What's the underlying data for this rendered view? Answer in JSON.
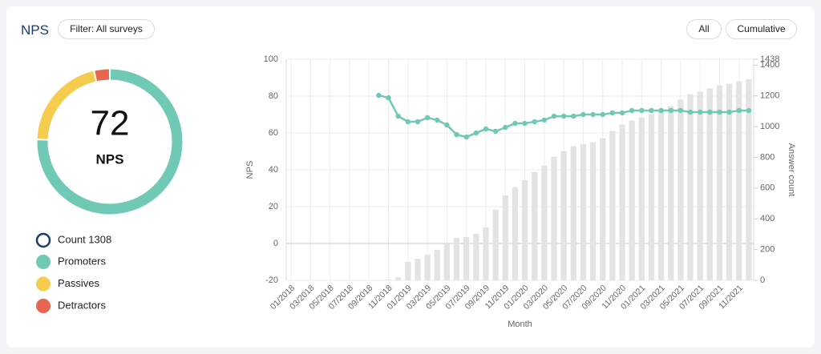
{
  "header": {
    "title": "NPS",
    "filter": "Filter: All surveys",
    "buttons": [
      "All",
      "Cumulative"
    ]
  },
  "chart_data": [
    {
      "type": "donut",
      "center_value": 72,
      "center_label": "NPS",
      "count_label": "Count 1308",
      "categories": [
        "Promoters",
        "Passives",
        "Detractors"
      ],
      "values": [
        75.5,
        21,
        3.5
      ],
      "colors": [
        "#6fc9b5",
        "#f6cc4e",
        "#e8664f"
      ]
    },
    {
      "type": "combo",
      "xlabel": "Month",
      "ylabel": "NPS",
      "y2label": "Answer count",
      "grid": true,
      "categories": [
        "01/2018",
        null,
        "03/2018",
        null,
        "05/2018",
        null,
        "07/2018",
        null,
        "09/2018",
        null,
        "11/2018",
        null,
        "01/2019",
        null,
        "03/2019",
        null,
        "05/2019",
        null,
        "07/2019",
        null,
        "09/2019",
        null,
        "11/2019",
        null,
        "01/2020",
        null,
        "03/2020",
        null,
        "05/2020",
        null,
        "07/2020",
        null,
        "09/2020",
        null,
        "11/2020",
        null,
        "01/2021",
        null,
        "03/2021",
        null,
        "05/2021",
        null,
        "07/2021",
        null,
        "09/2021",
        null,
        "11/2021",
        null
      ],
      "ylim": [
        -20,
        100
      ],
      "yticks": [
        -20,
        0,
        20,
        40,
        60,
        80,
        100
      ],
      "y2lim": [
        0,
        1438
      ],
      "y2ticks": [
        0,
        200,
        400,
        600,
        800,
        1000,
        1200,
        1400,
        1438
      ],
      "series": [
        {
          "type": "bar",
          "axis": "y2",
          "color": "#e3e3e3",
          "values": [
            0,
            0,
            0,
            0,
            0,
            0,
            0,
            0,
            0,
            0,
            5,
            20,
            120,
            140,
            167,
            198,
            245,
            277,
            282,
            303,
            345,
            460,
            553,
            606,
            653,
            705,
            747,
            804,
            840,
            872,
            887,
            898,
            924,
            971,
            1013,
            1039,
            1060,
            1081,
            1107,
            1133,
            1175,
            1211,
            1227,
            1248,
            1269,
            1279,
            1295,
            1308
          ]
        },
        {
          "type": "line",
          "axis": "y",
          "color": "#6fc9b5",
          "values": [
            null,
            null,
            null,
            null,
            null,
            null,
            null,
            null,
            null,
            80.4,
            79.1,
            69.1,
            66.1,
            66.1,
            68.3,
            67,
            64.3,
            59.1,
            57.8,
            60,
            62.2,
            60.9,
            63,
            65.2,
            65.2,
            66.1,
            67,
            69.1,
            69.1,
            69.1,
            70,
            70,
            70,
            70.9,
            70.9,
            72.2,
            72.2,
            72.2,
            72.2,
            72.2,
            72.2,
            71.3,
            71.3,
            71.3,
            71.3,
            71.3,
            72.2,
            72.2
          ]
        }
      ]
    }
  ]
}
